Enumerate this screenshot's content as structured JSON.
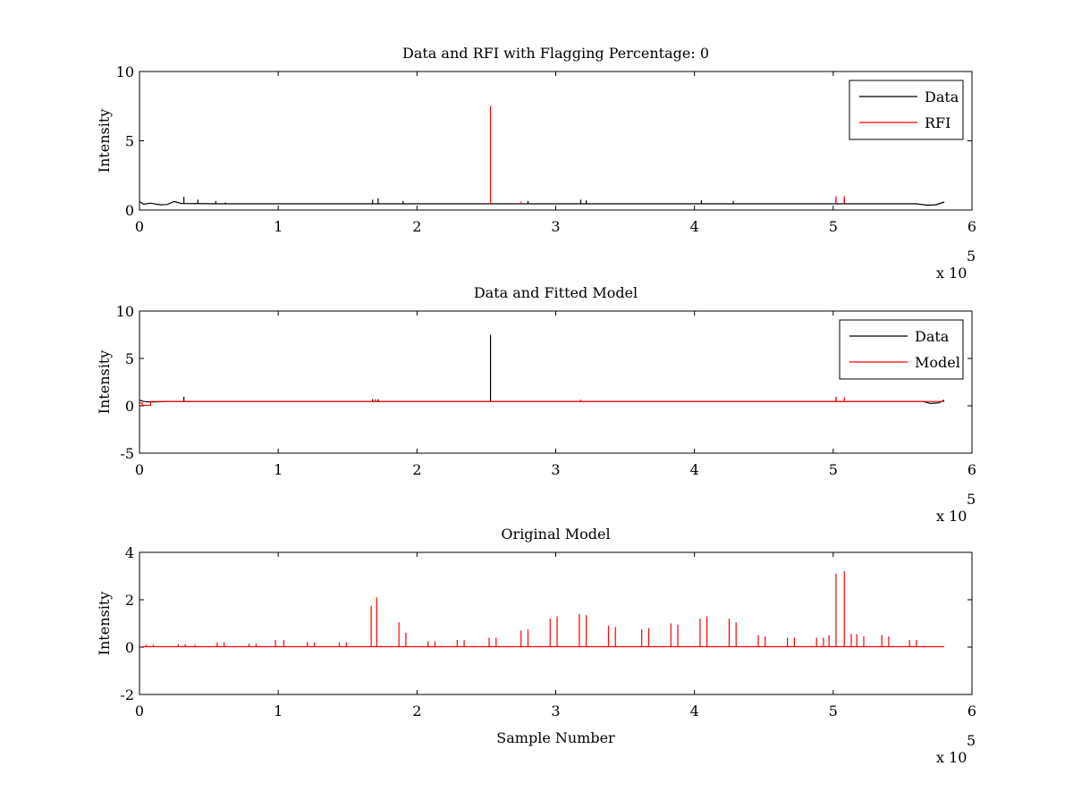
{
  "chart_data": [
    {
      "type": "line",
      "title": "Data and RFI with Flagging Percentage: 0",
      "xlabel": "",
      "ylabel": "Intensity",
      "xlim": [
        0,
        600000
      ],
      "ylim": [
        0,
        10
      ],
      "xticks": [
        "0",
        "1",
        "2",
        "3",
        "4",
        "5",
        "6"
      ],
      "yticks": [
        "0",
        "5",
        "10"
      ],
      "x_exponent_label": "x 10",
      "x_exponent_power": "5",
      "legend": {
        "position": "top-right",
        "entries": [
          "Data",
          "RFI"
        ]
      },
      "series": [
        {
          "name": "Data",
          "color": "#000000",
          "baseline_points": [
            [
              0,
              0.62
            ],
            [
              3000,
              0.42
            ],
            [
              8000,
              0.5
            ],
            [
              15000,
              0.38
            ],
            [
              20000,
              0.4
            ],
            [
              25000,
              0.62
            ],
            [
              30000,
              0.48
            ],
            [
              60000,
              0.45
            ],
            [
              300000,
              0.45
            ],
            [
              560000,
              0.45
            ],
            [
              568000,
              0.35
            ],
            [
              574000,
              0.38
            ],
            [
              580000,
              0.58
            ]
          ],
          "spikes": [
            [
              32000,
              0.95
            ],
            [
              42000,
              0.75
            ],
            [
              55000,
              0.65
            ],
            [
              62000,
              0.55
            ],
            [
              168000,
              0.75
            ],
            [
              172000,
              0.85
            ],
            [
              190000,
              0.65
            ],
            [
              280000,
              0.65
            ],
            [
              318000,
              0.75
            ],
            [
              322000,
              0.7
            ],
            [
              405000,
              0.7
            ],
            [
              428000,
              0.65
            ],
            [
              502000,
              0.8
            ],
            [
              508000,
              0.75
            ]
          ]
        },
        {
          "name": "RFI",
          "color": "#ff0000",
          "spikes": [
            [
              253000,
              7.5
            ],
            [
              275000,
              0.6
            ],
            [
              502000,
              1.0
            ],
            [
              508000,
              1.0
            ]
          ]
        }
      ]
    },
    {
      "type": "line",
      "title": "Data and Fitted Model",
      "xlabel": "",
      "ylabel": "Intensity",
      "xlim": [
        0,
        600000
      ],
      "ylim": [
        -5,
        10
      ],
      "xticks": [
        "0",
        "1",
        "2",
        "3",
        "4",
        "5",
        "6"
      ],
      "yticks": [
        "-5",
        "0",
        "5",
        "10"
      ],
      "x_exponent_label": "x 10",
      "x_exponent_power": "5",
      "legend": {
        "position": "top-right",
        "entries": [
          "Data",
          "Model"
        ]
      },
      "series": [
        {
          "name": "Data",
          "color": "#000000",
          "baseline_points": [
            [
              0,
              0.6
            ],
            [
              3000,
              0.45
            ],
            [
              8000,
              0.4
            ],
            [
              20000,
              0.45
            ],
            [
              300000,
              0.45
            ],
            [
              565000,
              0.45
            ],
            [
              570000,
              0.25
            ],
            [
              576000,
              0.3
            ],
            [
              580000,
              0.6
            ]
          ],
          "spikes": [
            [
              32000,
              0.95
            ],
            [
              253000,
              7.5
            ],
            [
              168000,
              0.7
            ],
            [
              172000,
              0.7
            ],
            [
              502000,
              0.9
            ]
          ]
        },
        {
          "name": "Model",
          "color": "#ff0000",
          "baseline_points": [
            [
              0,
              0.3
            ],
            [
              2000,
              0.3
            ],
            [
              2000,
              0.05
            ],
            [
              8000,
              0.05
            ],
            [
              8000,
              0.45
            ],
            [
              580000,
              0.45
            ]
          ],
          "spikes": [
            [
              170000,
              0.7
            ],
            [
              318000,
              0.65
            ],
            [
              502000,
              0.95
            ],
            [
              508000,
              0.9
            ]
          ]
        }
      ]
    },
    {
      "type": "line",
      "title": "Original Model",
      "xlabel": "Sample Number",
      "ylabel": "Intensity",
      "xlim": [
        0,
        600000
      ],
      "ylim": [
        -2,
        4
      ],
      "xticks": [
        "0",
        "1",
        "2",
        "3",
        "4",
        "5",
        "6"
      ],
      "yticks": [
        "-2",
        "0",
        "2",
        "4"
      ],
      "x_exponent_label": "x 10",
      "x_exponent_power": "5",
      "series": [
        {
          "color": "#ff0000",
          "baseline_points": [
            [
              2000,
              0.02
            ],
            [
              580000,
              0.02
            ]
          ],
          "spikes": [
            [
              5000,
              0.1
            ],
            [
              10000,
              0.1
            ],
            [
              28000,
              0.12
            ],
            [
              33000,
              0.12
            ],
            [
              40000,
              0.1
            ],
            [
              56000,
              0.2
            ],
            [
              61000,
              0.2
            ],
            [
              79000,
              0.15
            ],
            [
              84000,
              0.15
            ],
            [
              98000,
              0.3
            ],
            [
              104000,
              0.3
            ],
            [
              121000,
              0.2
            ],
            [
              126000,
              0.2
            ],
            [
              144000,
              0.2
            ],
            [
              149000,
              0.2
            ],
            [
              167000,
              1.75
            ],
            [
              171000,
              2.1
            ],
            [
              187000,
              1.05
            ],
            [
              192000,
              0.6
            ],
            [
              208000,
              0.25
            ],
            [
              213000,
              0.25
            ],
            [
              229000,
              0.3
            ],
            [
              234000,
              0.3
            ],
            [
              252000,
              0.4
            ],
            [
              257000,
              0.4
            ],
            [
              275000,
              0.7
            ],
            [
              280000,
              0.75
            ],
            [
              296000,
              1.2
            ],
            [
              301000,
              1.3
            ],
            [
              317000,
              1.4
            ],
            [
              322000,
              1.35
            ],
            [
              338000,
              0.9
            ],
            [
              343000,
              0.85
            ],
            [
              362000,
              0.75
            ],
            [
              367000,
              0.8
            ],
            [
              383000,
              1.0
            ],
            [
              388000,
              0.95
            ],
            [
              404000,
              1.2
            ],
            [
              409000,
              1.3
            ],
            [
              425000,
              1.2
            ],
            [
              430000,
              1.05
            ],
            [
              446000,
              0.5
            ],
            [
              451000,
              0.45
            ],
            [
              467000,
              0.4
            ],
            [
              472000,
              0.4
            ],
            [
              488000,
              0.4
            ],
            [
              493000,
              0.4
            ],
            [
              497000,
              0.5
            ],
            [
              502000,
              3.1
            ],
            [
              508000,
              3.2
            ],
            [
              513000,
              0.55
            ],
            [
              517000,
              0.55
            ],
            [
              522000,
              0.45
            ],
            [
              535000,
              0.5
            ],
            [
              540000,
              0.45
            ],
            [
              555000,
              0.3
            ],
            [
              560000,
              0.3
            ]
          ]
        }
      ]
    }
  ]
}
